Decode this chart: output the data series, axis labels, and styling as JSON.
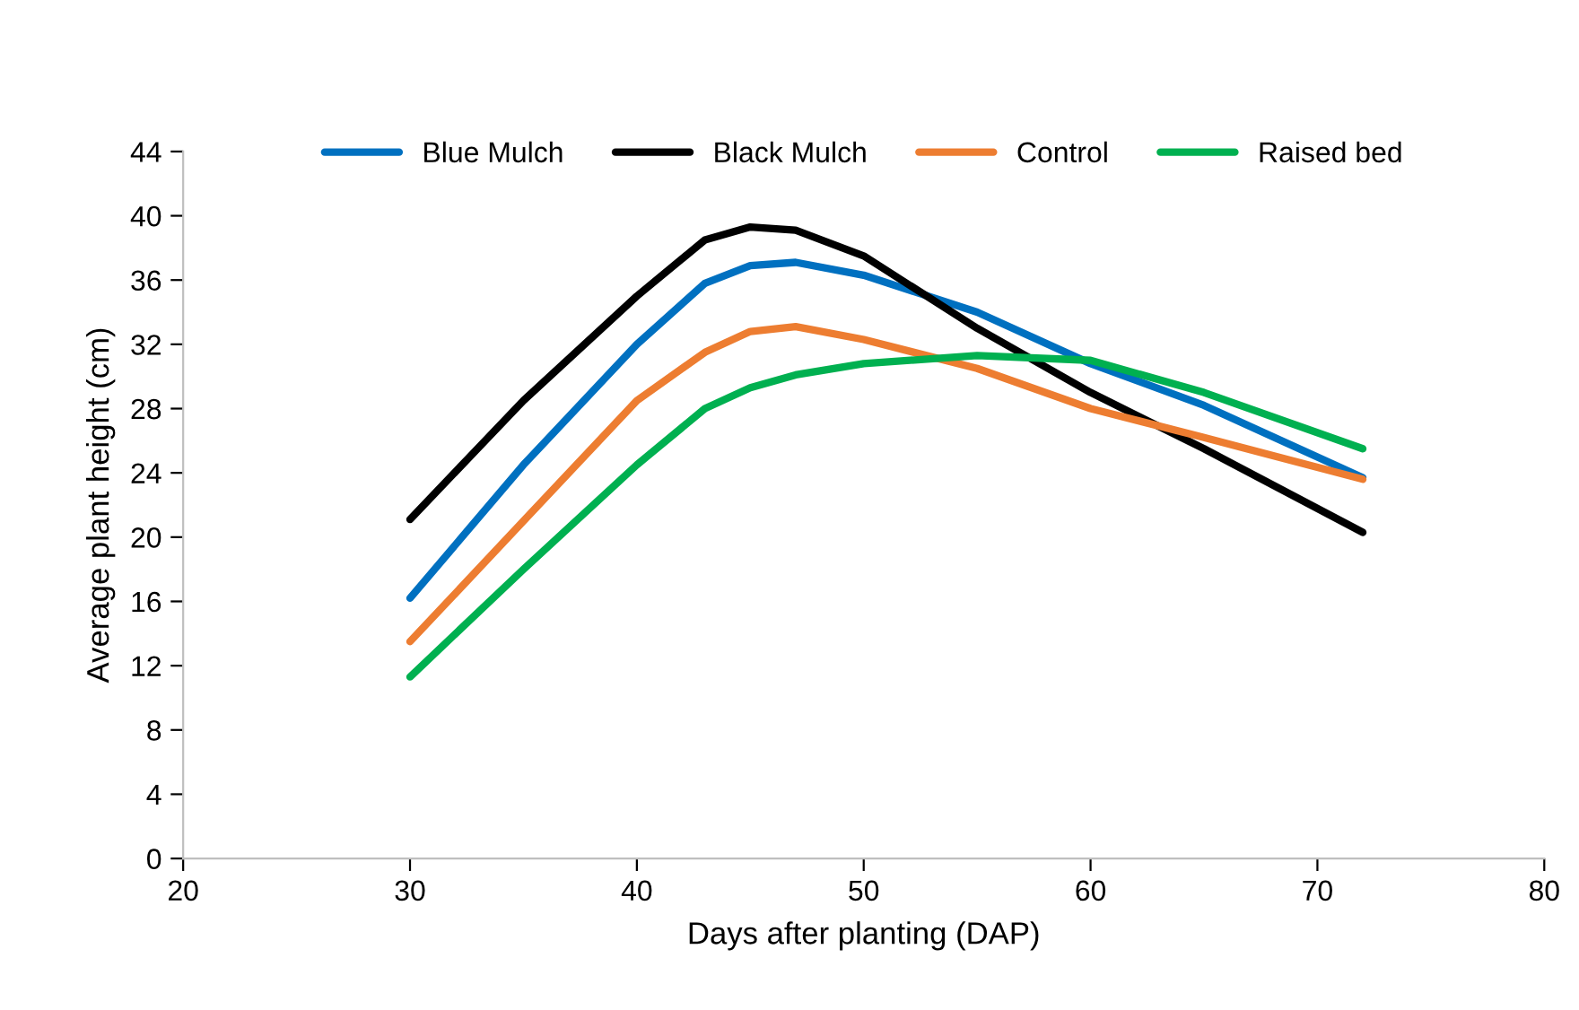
{
  "chart_data": {
    "type": "line",
    "xlabel": "Days after planting (DAP)",
    "ylabel": "Average plant height (cm)",
    "x": [
      30,
      35,
      40,
      43,
      45,
      47,
      50,
      55,
      60,
      65,
      72
    ],
    "series": [
      {
        "name": "Blue Mulch",
        "color": "#0070c0",
        "values": [
          16.2,
          24.5,
          32,
          35.8,
          36.9,
          37.1,
          36.3,
          34,
          30.8,
          28.2,
          23.7
        ]
      },
      {
        "name": "Black Mulch",
        "color": "#000000",
        "values": [
          21.1,
          28.5,
          35,
          38.5,
          39.3,
          39.1,
          37.5,
          33,
          29,
          25.5,
          20.3
        ]
      },
      {
        "name": "Control",
        "color": "#ed7d31",
        "values": [
          13.5,
          21,
          28.5,
          31.5,
          32.8,
          33.1,
          32.3,
          30.5,
          28,
          26.2,
          23.6
        ]
      },
      {
        "name": "Raised bed",
        "color": "#00b050",
        "values": [
          11.3,
          18,
          24.5,
          28,
          29.3,
          30.1,
          30.8,
          31.3,
          31,
          29,
          25.5
        ]
      }
    ],
    "xlim": [
      20,
      80
    ],
    "xticks": [
      20,
      30,
      40,
      50,
      60,
      70,
      80
    ],
    "ylim": [
      0,
      44
    ],
    "yticks": [
      0,
      4,
      8,
      12,
      16,
      20,
      24,
      28,
      32,
      36,
      40,
      44
    ],
    "grid": false,
    "legend": "top",
    "marker": "none",
    "line_style": "solid"
  }
}
